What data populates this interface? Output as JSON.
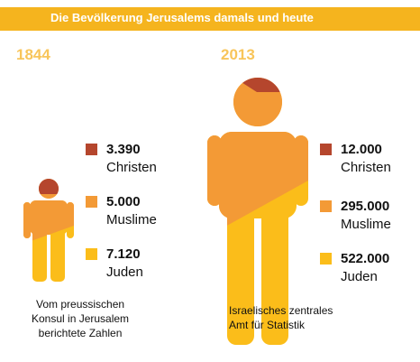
{
  "title": "Die Bevölkerung Jerusalems damals und heute",
  "colors": {
    "title_bar": "#f5b41e",
    "Christen": "#b5462d",
    "Muslime": "#f39a36",
    "Juden": "#fbbd1a",
    "year": "#f8c55a"
  },
  "chart_data": [
    {
      "type": "pie",
      "year": "1844",
      "series": [
        {
          "name": "Christen",
          "value": 3390,
          "label": "3.390"
        },
        {
          "name": "Muslime",
          "value": 5000,
          "label": "5.000"
        },
        {
          "name": "Juden",
          "value": 7120,
          "label": "7.120"
        }
      ],
      "source": [
        "Vom preussischen",
        "Konsul in Jerusalem",
        "berichtete Zahlen"
      ]
    },
    {
      "type": "pie",
      "year": "2013",
      "series": [
        {
          "name": "Christen",
          "value": 12000,
          "label": "12.000"
        },
        {
          "name": "Muslime",
          "value": 295000,
          "label": "295.000"
        },
        {
          "name": "Juden",
          "value": 522000,
          "label": "522.000"
        }
      ],
      "source": [
        "Israelisches zentrales",
        "Amt für Statistik"
      ]
    }
  ]
}
